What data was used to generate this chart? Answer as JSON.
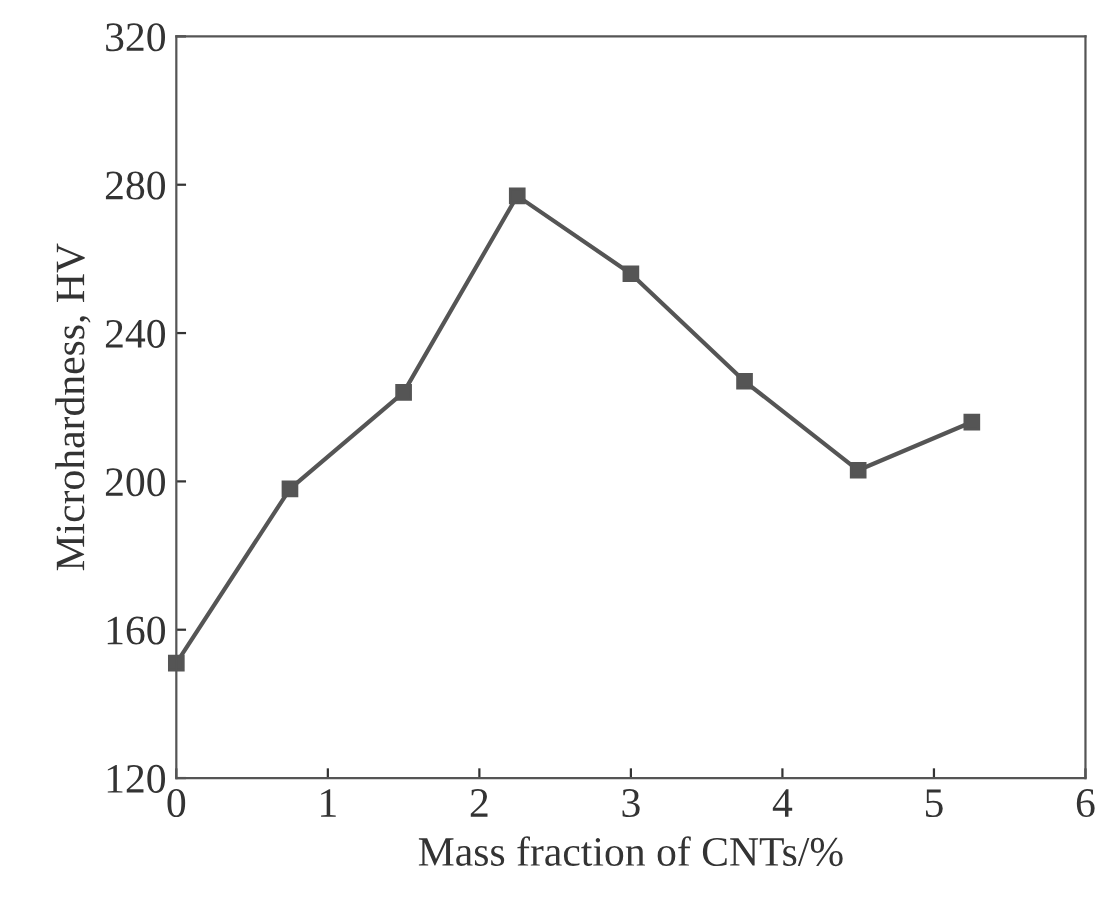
{
  "chart_data": {
    "type": "line",
    "xlabel": "Mass fraction of CNTs/%",
    "ylabel": "Microhardness, HV",
    "x": [
      0,
      0.75,
      1.5,
      2.25,
      3,
      3.75,
      4.5,
      5.25
    ],
    "series": [
      {
        "color": "#555555",
        "values": [
          151,
          198,
          224,
          277,
          256,
          227,
          203,
          216
        ]
      }
    ],
    "marker": "square",
    "line_style": "solid",
    "xlim": [
      0,
      6
    ],
    "xticks": [
      0,
      1,
      2,
      3,
      4,
      5,
      6
    ],
    "ylim": [
      120,
      320
    ],
    "yticks": [
      120,
      160,
      200,
      240,
      280,
      320
    ],
    "grid": false,
    "legend": false
  }
}
